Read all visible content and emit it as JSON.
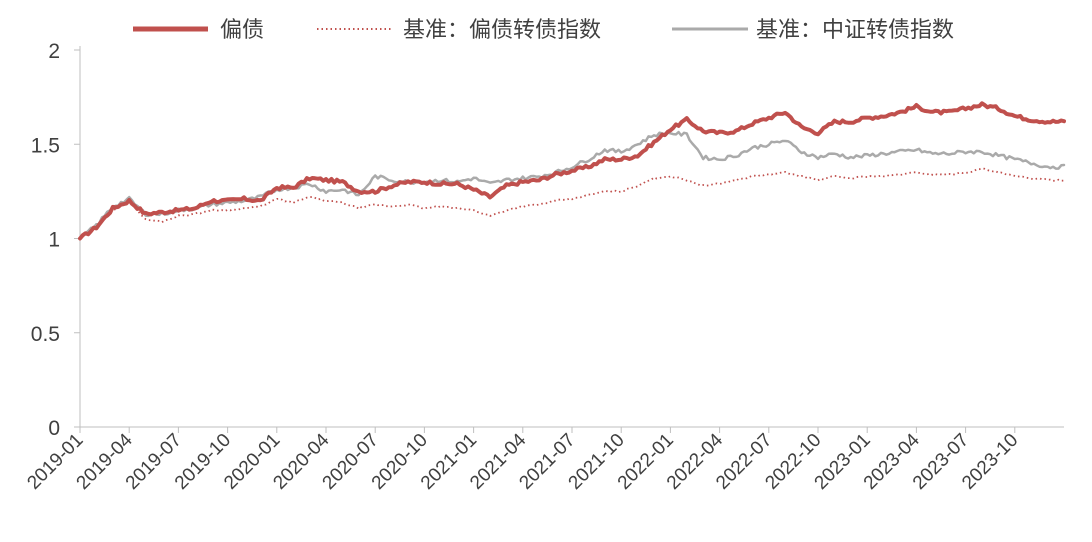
{
  "chart_data": {
    "type": "line",
    "title": "",
    "xlabel": "",
    "ylabel": "",
    "ylim": [
      0,
      2
    ],
    "yticks": [
      "0",
      "0.5",
      "1",
      "1.5",
      "2"
    ],
    "xlim": [
      "2019-01",
      "2024-01"
    ],
    "xticks": [
      "2019-01",
      "2019-04",
      "2019-07",
      "2019-10",
      "2020-01",
      "2020-04",
      "2020-07",
      "2020-10",
      "2021-01",
      "2021-04",
      "2021-07",
      "2021-10",
      "2022-01",
      "2022-04",
      "2022-07",
      "2022-10",
      "2023-01",
      "2023-04",
      "2023-07",
      "2023-10"
    ],
    "grid": false,
    "legend_position": "top",
    "x": [
      "2019-01",
      "2019-02",
      "2019-03",
      "2019-04",
      "2019-05",
      "2019-06",
      "2019-07",
      "2019-08",
      "2019-09",
      "2019-10",
      "2019-11",
      "2019-12",
      "2020-01",
      "2020-02",
      "2020-03",
      "2020-04",
      "2020-05",
      "2020-06",
      "2020-07",
      "2020-08",
      "2020-09",
      "2020-10",
      "2020-11",
      "2020-12",
      "2021-01",
      "2021-02",
      "2021-03",
      "2021-04",
      "2021-05",
      "2021-06",
      "2021-07",
      "2021-08",
      "2021-09",
      "2021-10",
      "2021-11",
      "2021-12",
      "2022-01",
      "2022-02",
      "2022-03",
      "2022-04",
      "2022-05",
      "2022-06",
      "2022-07",
      "2022-08",
      "2022-09",
      "2022-10",
      "2022-11",
      "2022-12",
      "2023-01",
      "2023-02",
      "2023-03",
      "2023-04",
      "2023-05",
      "2023-06",
      "2023-07",
      "2023-08",
      "2023-09",
      "2023-10",
      "2023-11",
      "2023-12"
    ],
    "series": [
      {
        "name": "偏债",
        "color": "#c0504d",
        "style": "solid-thick",
        "values": [
          1.0,
          1.06,
          1.16,
          1.2,
          1.13,
          1.14,
          1.15,
          1.16,
          1.2,
          1.2,
          1.21,
          1.2,
          1.27,
          1.27,
          1.32,
          1.31,
          1.3,
          1.25,
          1.25,
          1.28,
          1.3,
          1.3,
          1.29,
          1.29,
          1.26,
          1.22,
          1.28,
          1.3,
          1.31,
          1.34,
          1.36,
          1.38,
          1.42,
          1.42,
          1.44,
          1.51,
          1.58,
          1.63,
          1.57,
          1.56,
          1.57,
          1.61,
          1.64,
          1.67,
          1.59,
          1.56,
          1.62,
          1.62,
          1.64,
          1.65,
          1.67,
          1.7,
          1.67,
          1.67,
          1.69,
          1.71,
          1.69,
          1.65,
          1.63,
          1.62
        ]
      },
      {
        "name": "基准：偏债转债指数",
        "color": "#c0504d",
        "style": "dotted",
        "values": [
          1.0,
          1.06,
          1.15,
          1.2,
          1.1,
          1.09,
          1.12,
          1.13,
          1.15,
          1.15,
          1.16,
          1.17,
          1.21,
          1.19,
          1.22,
          1.2,
          1.19,
          1.16,
          1.18,
          1.17,
          1.18,
          1.16,
          1.17,
          1.16,
          1.15,
          1.12,
          1.15,
          1.17,
          1.18,
          1.2,
          1.21,
          1.23,
          1.25,
          1.25,
          1.28,
          1.32,
          1.33,
          1.31,
          1.28,
          1.29,
          1.31,
          1.33,
          1.34,
          1.35,
          1.33,
          1.31,
          1.33,
          1.32,
          1.33,
          1.33,
          1.34,
          1.35,
          1.34,
          1.34,
          1.35,
          1.37,
          1.35,
          1.33,
          1.32,
          1.31
        ]
      },
      {
        "name": "基准：中证转债指数",
        "color": "#aaaaaa",
        "style": "solid",
        "values": [
          1.0,
          1.07,
          1.17,
          1.21,
          1.13,
          1.13,
          1.15,
          1.16,
          1.18,
          1.19,
          1.2,
          1.22,
          1.26,
          1.27,
          1.29,
          1.25,
          1.26,
          1.23,
          1.33,
          1.31,
          1.3,
          1.3,
          1.31,
          1.3,
          1.32,
          1.29,
          1.31,
          1.32,
          1.33,
          1.35,
          1.38,
          1.42,
          1.47,
          1.46,
          1.5,
          1.55,
          1.56,
          1.55,
          1.43,
          1.42,
          1.44,
          1.48,
          1.5,
          1.52,
          1.46,
          1.43,
          1.45,
          1.43,
          1.44,
          1.45,
          1.46,
          1.47,
          1.45,
          1.45,
          1.46,
          1.46,
          1.44,
          1.42,
          1.4,
          1.38
        ]
      }
    ]
  }
}
